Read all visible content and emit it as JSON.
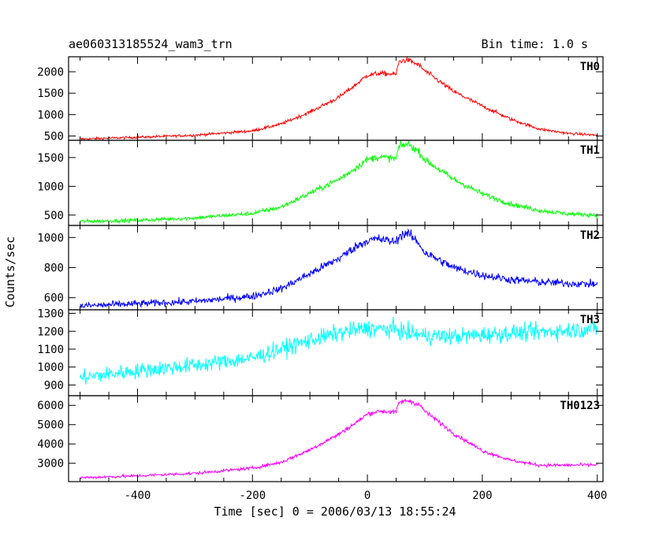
{
  "chart_data": {
    "type": "line",
    "title": "ae060313185524_wam3_trn",
    "bin_time_label": "Bin time: 1.0 s",
    "xlabel": "Time [sec] 0 = 2006/03/13 18:55:24",
    "ylabel": "Counts/sec",
    "xlim": [
      -520,
      410
    ],
    "x_ticks": [
      -400,
      -200,
      0,
      200,
      400
    ],
    "grid": false,
    "panels": [
      {
        "name": "TH0",
        "color": "#ff0000",
        "ylim": [
          400,
          2350
        ],
        "y_ticks": [
          500,
          1000,
          1500,
          2000
        ],
        "noise": 25,
        "profile": [
          [
            -500,
            430
          ],
          [
            -400,
            470
          ],
          [
            -300,
            520
          ],
          [
            -200,
            620
          ],
          [
            -150,
            780
          ],
          [
            -100,
            1060
          ],
          [
            -50,
            1400
          ],
          [
            -20,
            1700
          ],
          [
            0,
            1920
          ],
          [
            20,
            1960
          ],
          [
            50,
            1940
          ],
          [
            55,
            2240
          ],
          [
            70,
            2280
          ],
          [
            90,
            2150
          ],
          [
            100,
            2020
          ],
          [
            150,
            1540
          ],
          [
            200,
            1200
          ],
          [
            250,
            890
          ],
          [
            300,
            660
          ],
          [
            350,
            560
          ],
          [
            400,
            520
          ]
        ]
      },
      {
        "name": "TH1",
        "color": "#00ff00",
        "ylim": [
          320,
          1800
        ],
        "y_ticks": [
          500,
          1000,
          1500
        ],
        "noise": 30,
        "profile": [
          [
            -500,
            390
          ],
          [
            -400,
            410
          ],
          [
            -300,
            450
          ],
          [
            -200,
            530
          ],
          [
            -150,
            640
          ],
          [
            -100,
            880
          ],
          [
            -50,
            1120
          ],
          [
            -20,
            1320
          ],
          [
            0,
            1470
          ],
          [
            20,
            1510
          ],
          [
            50,
            1480
          ],
          [
            55,
            1690
          ],
          [
            70,
            1740
          ],
          [
            90,
            1600
          ],
          [
            100,
            1460
          ],
          [
            150,
            1120
          ],
          [
            200,
            870
          ],
          [
            250,
            690
          ],
          [
            300,
            580
          ],
          [
            350,
            520
          ],
          [
            400,
            500
          ]
        ]
      },
      {
        "name": "TH2",
        "color": "#0000ff",
        "ylim": [
          520,
          1080
        ],
        "y_ticks": [
          600,
          800,
          1000
        ],
        "noise": 22,
        "profile": [
          [
            -500,
            545
          ],
          [
            -400,
            560
          ],
          [
            -300,
            575
          ],
          [
            -200,
            610
          ],
          [
            -150,
            660
          ],
          [
            -100,
            760
          ],
          [
            -50,
            860
          ],
          [
            -20,
            940
          ],
          [
            0,
            980
          ],
          [
            20,
            990
          ],
          [
            50,
            970
          ],
          [
            55,
            1010
          ],
          [
            70,
            1030
          ],
          [
            90,
            960
          ],
          [
            100,
            900
          ],
          [
            150,
            800
          ],
          [
            200,
            750
          ],
          [
            250,
            720
          ],
          [
            300,
            705
          ],
          [
            350,
            695
          ],
          [
            400,
            690
          ]
        ]
      },
      {
        "name": "TH3",
        "color": "#00ffff",
        "ylim": [
          840,
          1320
        ],
        "y_ticks": [
          900,
          1000,
          1100,
          1200,
          1300
        ],
        "noise": 40,
        "profile": [
          [
            -500,
            940
          ],
          [
            -400,
            980
          ],
          [
            -300,
            1010
          ],
          [
            -200,
            1050
          ],
          [
            -150,
            1100
          ],
          [
            -100,
            1150
          ],
          [
            -50,
            1190
          ],
          [
            0,
            1215
          ],
          [
            50,
            1210
          ],
          [
            70,
            1190
          ],
          [
            100,
            1175
          ],
          [
            150,
            1170
          ],
          [
            200,
            1180
          ],
          [
            250,
            1190
          ],
          [
            300,
            1195
          ],
          [
            350,
            1205
          ],
          [
            400,
            1215
          ]
        ]
      },
      {
        "name": "TH0123",
        "color": "#ff00ff",
        "ylim": [
          2050,
          6500
        ],
        "y_ticks": [
          3000,
          4000,
          5000,
          6000
        ],
        "noise": 70,
        "profile": [
          [
            -500,
            2250
          ],
          [
            -400,
            2350
          ],
          [
            -300,
            2480
          ],
          [
            -200,
            2750
          ],
          [
            -150,
            3050
          ],
          [
            -100,
            3700
          ],
          [
            -50,
            4500
          ],
          [
            -20,
            5100
          ],
          [
            0,
            5550
          ],
          [
            20,
            5700
          ],
          [
            50,
            5650
          ],
          [
            55,
            6150
          ],
          [
            70,
            6250
          ],
          [
            90,
            6050
          ],
          [
            100,
            5700
          ],
          [
            150,
            4550
          ],
          [
            200,
            3650
          ],
          [
            250,
            3150
          ],
          [
            300,
            2900
          ],
          [
            350,
            2900
          ],
          [
            400,
            2920
          ]
        ]
      }
    ]
  }
}
